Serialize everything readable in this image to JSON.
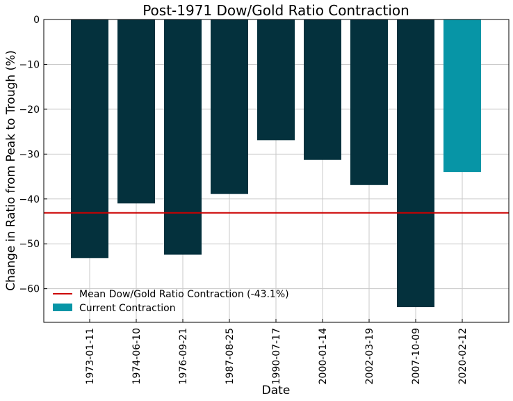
{
  "chart_data": {
    "type": "bar",
    "title": "Post-1971 Dow/Gold Ratio Contraction",
    "xlabel": "Date",
    "ylabel": "Change in Ratio from Peak to Trough (%)",
    "ylim": [
      -67.5,
      0
    ],
    "yticks": [
      0,
      -10,
      -20,
      -30,
      -40,
      -50,
      -60
    ],
    "ytick_labels": [
      "0",
      "−10",
      "−20",
      "−30",
      "−40",
      "−50",
      "−60"
    ],
    "grid": true,
    "categories": [
      "1973-01-11",
      "1974-06-10",
      "1976-09-21",
      "1987-08-25",
      "1990-07-17",
      "2000-01-14",
      "2002-03-19",
      "2007-10-09",
      "2020-02-12"
    ],
    "values": [
      -53.2,
      -41.0,
      -52.4,
      -38.9,
      -26.9,
      -31.3,
      -36.9,
      -64.1,
      -34.0
    ],
    "bar_colors": [
      "#04313d",
      "#04313d",
      "#04313d",
      "#04313d",
      "#04313d",
      "#04313d",
      "#04313d",
      "#04313d",
      "#0795a6"
    ],
    "mean_line": {
      "value": -43.1,
      "color": "#cc0000",
      "label": "Mean Dow/Gold Ratio Contraction (-43.1%)"
    },
    "current_bar_label": "Current Contraction",
    "current_color": "#0795a6",
    "legend_location": "lower-left"
  }
}
